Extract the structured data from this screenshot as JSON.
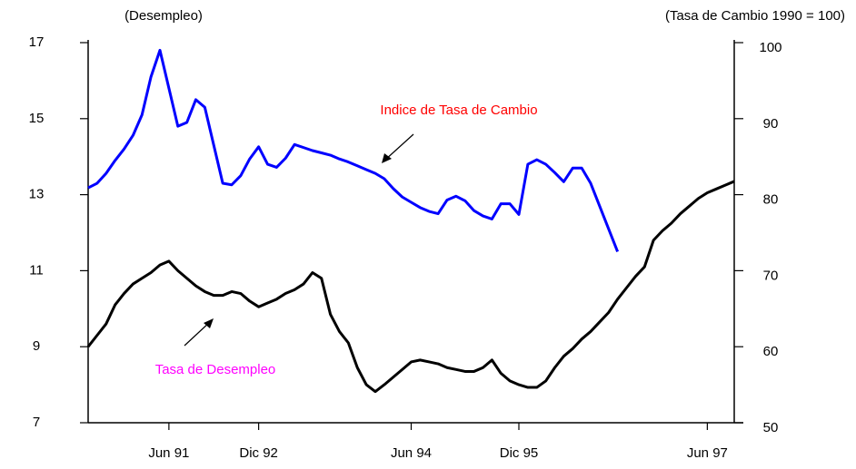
{
  "chart_data": {
    "type": "line",
    "y_label": "(Desempleo)",
    "y2_label": "(Tasa de Cambio 1990 = 100)",
    "categories": [
      null,
      null,
      null,
      null,
      null,
      null,
      null,
      null,
      null,
      "Jun 91",
      null,
      null,
      null,
      null,
      null,
      null,
      null,
      null,
      null,
      "Dic 92",
      null,
      null,
      null,
      null,
      null,
      null,
      null,
      null,
      null,
      null,
      null,
      null,
      null,
      null,
      null,
      null,
      "Jun 94",
      null,
      null,
      null,
      null,
      null,
      null,
      null,
      null,
      null,
      null,
      null,
      "Dic 95",
      null,
      null,
      null,
      null,
      null,
      null,
      null,
      null,
      null,
      null,
      null,
      null,
      null,
      null,
      null,
      null,
      null,
      null,
      null,
      null,
      "Jun 97",
      null,
      null,
      null
    ],
    "ylim": [
      7,
      17
    ],
    "yticks": [
      7,
      9,
      11,
      13,
      15,
      17
    ],
    "y2lim": [
      50,
      100
    ],
    "y2ticks": [
      50,
      60,
      70,
      80,
      90,
      100
    ],
    "series": [
      {
        "name": "Tasa de Desempleo",
        "color": "#000000",
        "label_color": "#ff00ff",
        "axis": "y",
        "values": [
          9.0,
          9.3,
          9.6,
          10.1,
          10.4,
          10.65,
          10.8,
          10.95,
          11.15,
          11.25,
          11.0,
          10.8,
          10.6,
          10.45,
          10.35,
          10.35,
          10.45,
          10.4,
          10.2,
          10.05,
          10.15,
          10.25,
          10.4,
          10.5,
          10.65,
          10.95,
          10.8,
          9.85,
          9.4,
          9.1,
          8.45,
          8.0,
          7.82,
          8.0,
          8.2,
          8.4,
          8.6,
          8.65,
          8.6,
          8.55,
          8.45,
          8.4,
          8.35,
          8.35,
          8.45,
          8.65,
          8.3,
          8.1,
          8.0,
          7.93,
          7.93,
          8.1,
          8.45,
          8.75,
          8.95,
          9.2,
          9.4,
          9.65,
          9.9,
          10.25,
          10.55,
          10.85,
          11.1,
          11.8,
          12.05,
          12.25,
          12.5,
          12.7,
          12.9,
          13.05,
          13.15,
          13.25,
          13.35
        ]
      },
      {
        "name": "Indice de Tasa de Cambio",
        "color": "#0000ff",
        "label_color": "#ff0000",
        "axis": "y2",
        "values": [
          80.9,
          81.5,
          82.8,
          84.5,
          86,
          87.8,
          90.5,
          95.5,
          99,
          94,
          89,
          89.5,
          92.5,
          91.5,
          86.5,
          81.5,
          81.3,
          82.5,
          84.7,
          86.3,
          84,
          83.6,
          84.8,
          86.6,
          86.2,
          85.8,
          85.5,
          85.2,
          84.7,
          84.3,
          83.8,
          83.3,
          82.8,
          82.1,
          80.8,
          79.7,
          79.0,
          78.3,
          77.8,
          77.5,
          79.3,
          79.8,
          79.2,
          77.9,
          77.2,
          76.8,
          78.8,
          78.8,
          77.4,
          84.0,
          84.6,
          84.0,
          82.9,
          81.7,
          83.5,
          83.5,
          81.5,
          78.5,
          75.5,
          72.5,
          null,
          null,
          null,
          null,
          null,
          null,
          null,
          null,
          null,
          null,
          null,
          null,
          null
        ]
      }
    ]
  }
}
